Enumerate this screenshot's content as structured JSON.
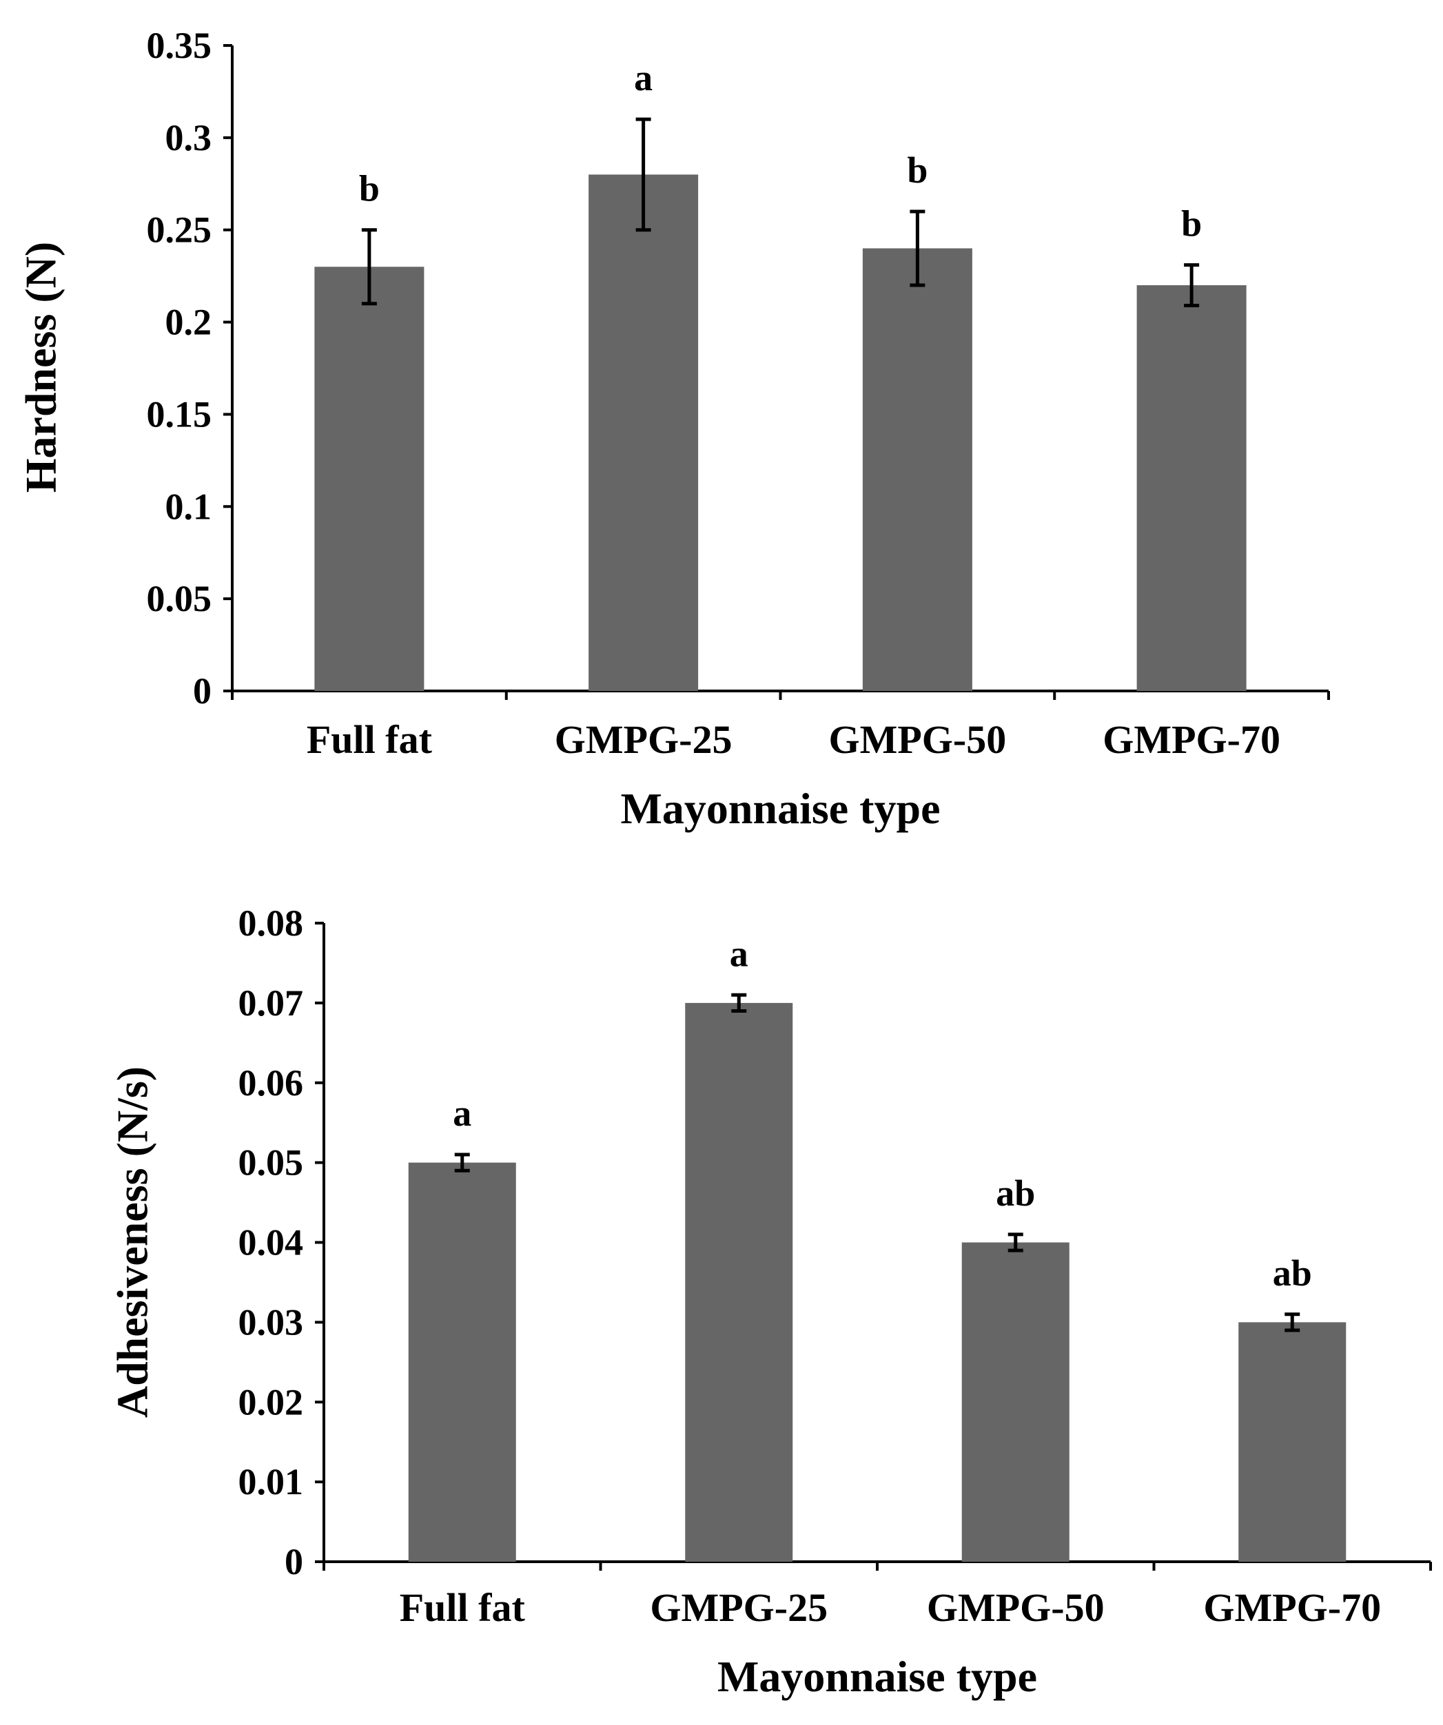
{
  "chart_data": [
    {
      "type": "bar",
      "title": "",
      "categories": [
        "Full fat",
        "GMPG-25",
        "GMPG-50",
        "GMPG-70"
      ],
      "values": [
        0.23,
        0.28,
        0.24,
        0.22
      ],
      "errors": [
        0.02,
        0.03,
        0.02,
        0.011
      ],
      "significance": [
        "b",
        "a",
        "b",
        "b"
      ],
      "xlabel": "Mayonnaise type",
      "ylabel": "Hardness (N)",
      "ylim": [
        0,
        0.35
      ],
      "yticks": [
        "0",
        "0.05",
        "0.1",
        "0.15",
        "0.2",
        "0.25",
        "0.3",
        "0.35"
      ],
      "bar_color": "#666666",
      "grid": false
    },
    {
      "type": "bar",
      "title": "",
      "categories": [
        "Full fat",
        "GMPG-25",
        "GMPG-50",
        "GMPG-70"
      ],
      "values": [
        0.05,
        0.07,
        0.04,
        0.03
      ],
      "errors": [
        0.001,
        0.001,
        0.001,
        0.001
      ],
      "significance": [
        "a",
        "a",
        "ab",
        "ab"
      ],
      "xlabel": "Mayonnaise type",
      "ylabel": "Adhesiveness (N/s)",
      "ylim": [
        0,
        0.08
      ],
      "yticks": [
        "0",
        "0.01",
        "0.02",
        "0.03",
        "0.04",
        "0.05",
        "0.06",
        "0.07",
        "0.08"
      ],
      "bar_color": "#666666",
      "grid": false
    }
  ]
}
